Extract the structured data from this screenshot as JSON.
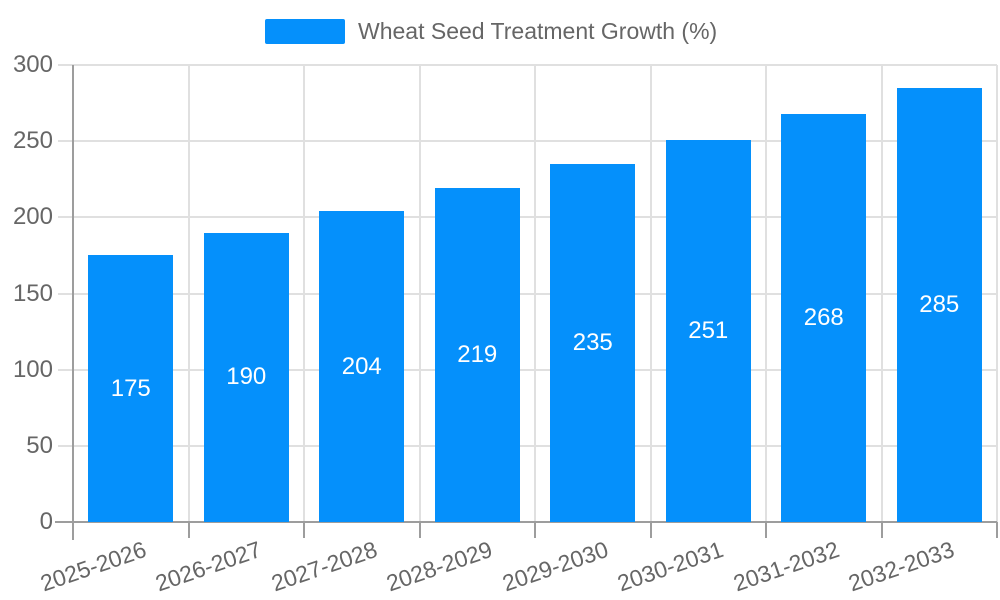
{
  "legend": {
    "label": "Wheat Seed Treatment Growth (%)"
  },
  "colors": {
    "bar": "#0590FB",
    "bar_label": "#FFFFFF",
    "grid": "#E0E0E0",
    "axis": "#9D9D9D",
    "text": "#666666",
    "background": "#FFFFFF"
  },
  "chart_data": {
    "type": "bar",
    "title": "",
    "series_name": "Wheat Seed Treatment Growth (%)",
    "categories": [
      "2025-2026",
      "2026-2027",
      "2027-2028",
      "2028-2029",
      "2029-2030",
      "2030-2031",
      "2031-2032",
      "2032-2033"
    ],
    "values": [
      175,
      190,
      204,
      219,
      235,
      251,
      268,
      285
    ],
    "xlabel": "",
    "ylabel": "",
    "ylim": [
      0,
      300
    ],
    "yticks": [
      0,
      50,
      100,
      150,
      200,
      250,
      300
    ],
    "grid": true,
    "legend_position": "top-center",
    "x_tick_label_rotation_deg": -19
  }
}
